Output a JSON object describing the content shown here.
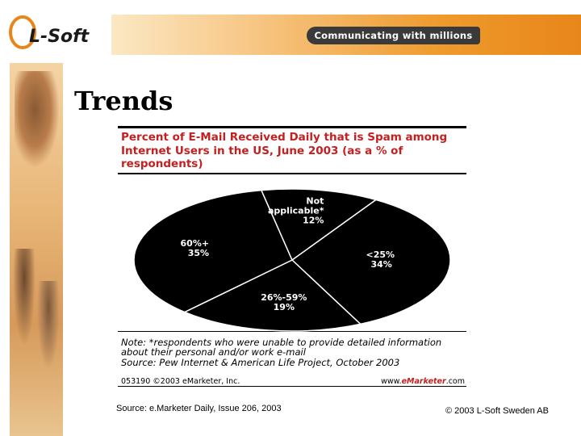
{
  "logo": {
    "text": "L-Soft"
  },
  "banner": {
    "tagline": "Communicating with millions"
  },
  "slide": {
    "title": "Trends"
  },
  "chart_data": {
    "type": "pie",
    "title_lines": [
      "Percent of E-Mail Received Daily that is Spam among",
      "Internet Users in the US, June 2003 (as a % of",
      "respondents)"
    ],
    "slices": [
      {
        "label_lines": [
          "<25%",
          "34%"
        ],
        "value": 34
      },
      {
        "label_lines": [
          "26%-59%",
          "19%"
        ],
        "value": 19
      },
      {
        "label_lines": [
          "60%+",
          "35%"
        ],
        "value": 35
      },
      {
        "label_lines": [
          "Not",
          "applicable*",
          "12%"
        ],
        "value": 12
      }
    ],
    "note_lines": [
      "Note: *respondents who were unable to provide detailed information",
      "about their personal and/or work e-mail",
      "Source: Pew Internet & American Life Project, October 2003"
    ],
    "footer_id": "053190 ©2003 eMarketer, Inc.",
    "footer_brand_prefix": "www.",
    "footer_brand_em": "eMarketer",
    "footer_brand_suffix": ".com",
    "colors": {
      "slice": "#000000",
      "divider": "#ffffff",
      "title": "#c4201f"
    }
  },
  "source": "Source: e.Marketer Daily, Issue 206, 2003",
  "copyright": "© 2003 L-Soft Sweden AB"
}
